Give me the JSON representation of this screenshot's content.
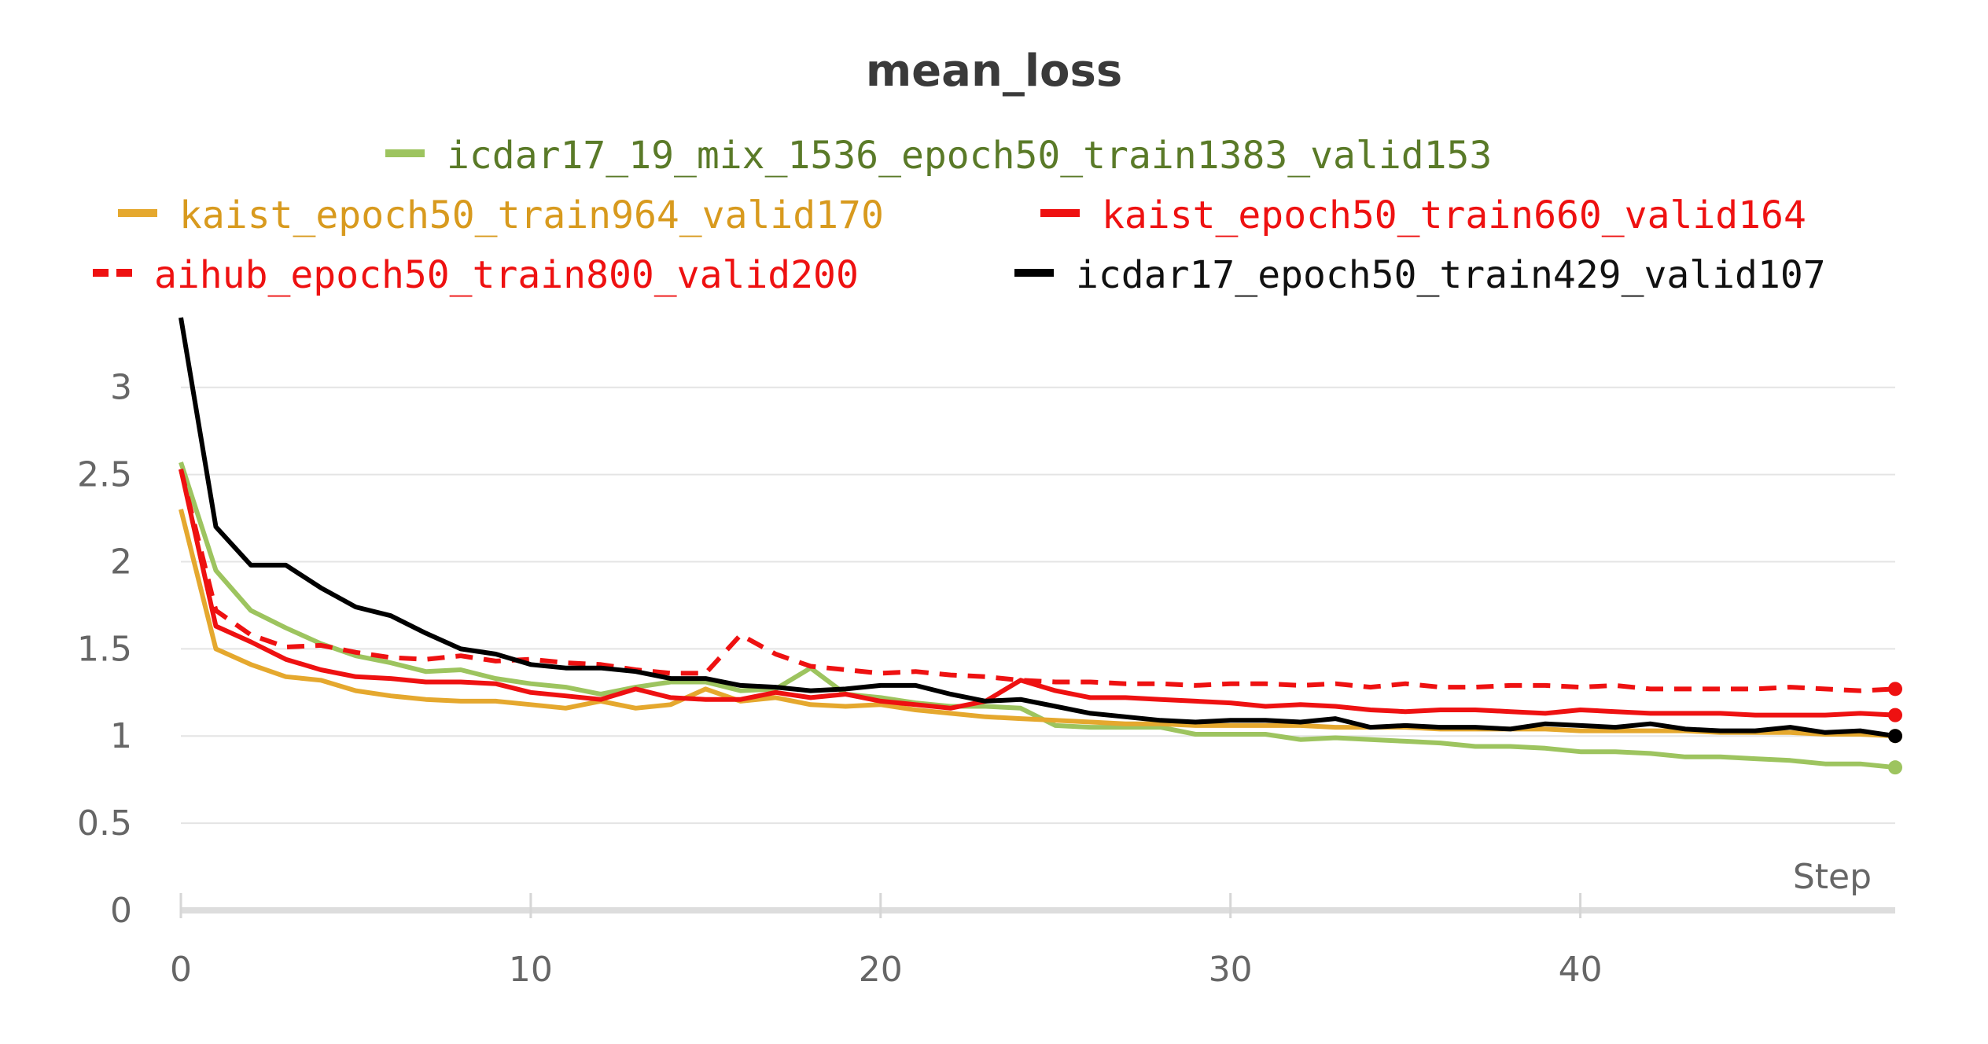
{
  "chart_data": {
    "type": "line",
    "title": "mean_loss",
    "xlabel": "Step",
    "ylabel": "",
    "xlim": [
      0,
      49
    ],
    "ylim": [
      0,
      3.4
    ],
    "x_ticks": [
      0,
      10,
      20,
      30,
      40
    ],
    "x_tick_labels": [
      "0",
      "10",
      "20",
      "30",
      "40"
    ],
    "y_ticks": [
      0,
      0.5,
      1,
      1.5,
      2,
      2.5,
      3
    ],
    "y_tick_labels": [
      "0",
      "0.5",
      "1",
      "1.5",
      "2",
      "2.5",
      "3"
    ],
    "grid": "horizontal",
    "legend_position": "top",
    "series": [
      {
        "name": "icdar17_19_mix_1536_epoch50_train1383_valid153",
        "color": "#9dc45f",
        "dash": "solid",
        "values": [
          2.57,
          1.95,
          1.72,
          1.62,
          1.53,
          1.46,
          1.42,
          1.37,
          1.38,
          1.33,
          1.3,
          1.28,
          1.24,
          1.28,
          1.31,
          1.31,
          1.26,
          1.27,
          1.39,
          1.24,
          1.22,
          1.19,
          1.17,
          1.17,
          1.16,
          1.06,
          1.05,
          1.05,
          1.05,
          1.01,
          1.01,
          1.01,
          0.98,
          0.99,
          0.98,
          0.97,
          0.96,
          0.94,
          0.94,
          0.93,
          0.91,
          0.91,
          0.9,
          0.88,
          0.88,
          0.87,
          0.86,
          0.84,
          0.84,
          0.82
        ]
      },
      {
        "name": "kaist_epoch50_train964_valid170",
        "color": "#e5a82e",
        "dash": "solid",
        "values": [
          2.3,
          1.5,
          1.41,
          1.34,
          1.32,
          1.26,
          1.23,
          1.21,
          1.2,
          1.2,
          1.18,
          1.16,
          1.2,
          1.16,
          1.18,
          1.27,
          1.2,
          1.22,
          1.18,
          1.17,
          1.18,
          1.15,
          1.13,
          1.11,
          1.1,
          1.09,
          1.08,
          1.07,
          1.07,
          1.06,
          1.06,
          1.06,
          1.06,
          1.05,
          1.05,
          1.05,
          1.04,
          1.04,
          1.04,
          1.04,
          1.03,
          1.03,
          1.03,
          1.03,
          1.02,
          1.02,
          1.02,
          1.01,
          1.01,
          1.0
        ]
      },
      {
        "name": "kaist_epoch50_train660_valid164",
        "color": "#ee1111",
        "dash": "solid",
        "values": [
          2.53,
          1.63,
          1.54,
          1.44,
          1.38,
          1.34,
          1.33,
          1.31,
          1.31,
          1.3,
          1.25,
          1.23,
          1.21,
          1.27,
          1.22,
          1.21,
          1.21,
          1.25,
          1.22,
          1.24,
          1.2,
          1.18,
          1.16,
          1.2,
          1.32,
          1.26,
          1.22,
          1.22,
          1.21,
          1.2,
          1.19,
          1.17,
          1.18,
          1.17,
          1.15,
          1.14,
          1.15,
          1.15,
          1.14,
          1.13,
          1.15,
          1.14,
          1.13,
          1.13,
          1.13,
          1.12,
          1.12,
          1.12,
          1.13,
          1.12
        ]
      },
      {
        "name": "aihub_epoch50_train800_valid200",
        "color": "#ee1111",
        "dash": "dashed",
        "values": [
          2.53,
          1.72,
          1.58,
          1.51,
          1.52,
          1.48,
          1.45,
          1.44,
          1.46,
          1.43,
          1.44,
          1.42,
          1.41,
          1.38,
          1.36,
          1.36,
          1.58,
          1.47,
          1.4,
          1.38,
          1.36,
          1.37,
          1.35,
          1.34,
          1.32,
          1.31,
          1.31,
          1.3,
          1.3,
          1.29,
          1.3,
          1.3,
          1.29,
          1.3,
          1.28,
          1.3,
          1.28,
          1.28,
          1.29,
          1.29,
          1.28,
          1.29,
          1.27,
          1.27,
          1.27,
          1.27,
          1.28,
          1.27,
          1.26,
          1.27
        ]
      },
      {
        "name": "icdar17_epoch50_train429_valid107",
        "color": "#000000",
        "dash": "solid",
        "values": [
          3.4,
          2.2,
          1.98,
          1.98,
          1.85,
          1.74,
          1.69,
          1.59,
          1.5,
          1.47,
          1.41,
          1.39,
          1.39,
          1.37,
          1.33,
          1.33,
          1.29,
          1.28,
          1.26,
          1.27,
          1.29,
          1.29,
          1.24,
          1.2,
          1.21,
          1.17,
          1.13,
          1.11,
          1.09,
          1.08,
          1.09,
          1.09,
          1.08,
          1.1,
          1.05,
          1.06,
          1.05,
          1.05,
          1.04,
          1.07,
          1.06,
          1.05,
          1.07,
          1.04,
          1.03,
          1.03,
          1.05,
          1.02,
          1.03,
          1.0
        ]
      }
    ]
  }
}
